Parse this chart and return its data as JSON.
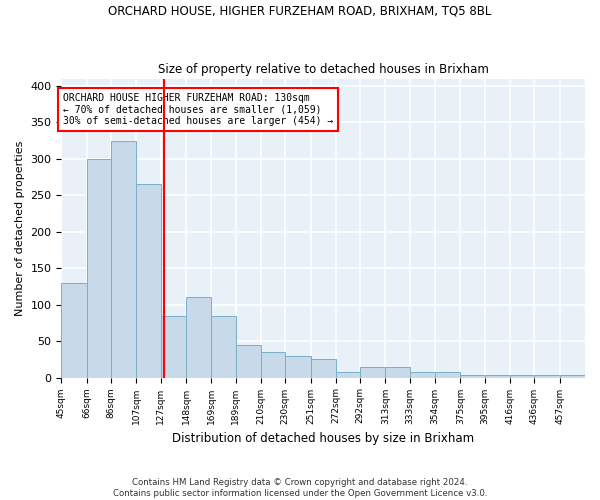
{
  "title": "ORCHARD HOUSE, HIGHER FURZEHAM ROAD, BRIXHAM, TQ5 8BL",
  "subtitle": "Size of property relative to detached houses in Brixham",
  "xlabel": "Distribution of detached houses by size in Brixham",
  "ylabel": "Number of detached properties",
  "bar_color": "#c8daea",
  "bar_edge_color": "#7aafc8",
  "background_color": "#e8f0f8",
  "grid_color": "#ffffff",
  "red_line_x": 130,
  "categories": [
    "45sqm",
    "66sqm",
    "86sqm",
    "107sqm",
    "127sqm",
    "148sqm",
    "169sqm",
    "189sqm",
    "210sqm",
    "230sqm",
    "251sqm",
    "272sqm",
    "292sqm",
    "313sqm",
    "333sqm",
    "354sqm",
    "375sqm",
    "395sqm",
    "416sqm",
    "436sqm",
    "457sqm"
  ],
  "values": [
    130,
    300,
    325,
    265,
    85,
    110,
    85,
    45,
    35,
    30,
    25,
    8,
    15,
    15,
    8,
    8,
    3,
    3,
    3,
    3,
    3
  ],
  "bin_edges": [
    45,
    66,
    86,
    107,
    127,
    148,
    169,
    189,
    210,
    230,
    251,
    272,
    292,
    313,
    333,
    354,
    375,
    395,
    416,
    436,
    457,
    478
  ],
  "ylim": [
    0,
    410
  ],
  "yticks": [
    0,
    50,
    100,
    150,
    200,
    250,
    300,
    350,
    400
  ],
  "annotation_text": "ORCHARD HOUSE HIGHER FURZEHAM ROAD: 130sqm\n← 70% of detached houses are smaller (1,059)\n30% of semi-detached houses are larger (454) →",
  "footer_line1": "Contains HM Land Registry data © Crown copyright and database right 2024.",
  "footer_line2": "Contains public sector information licensed under the Open Government Licence v3.0."
}
